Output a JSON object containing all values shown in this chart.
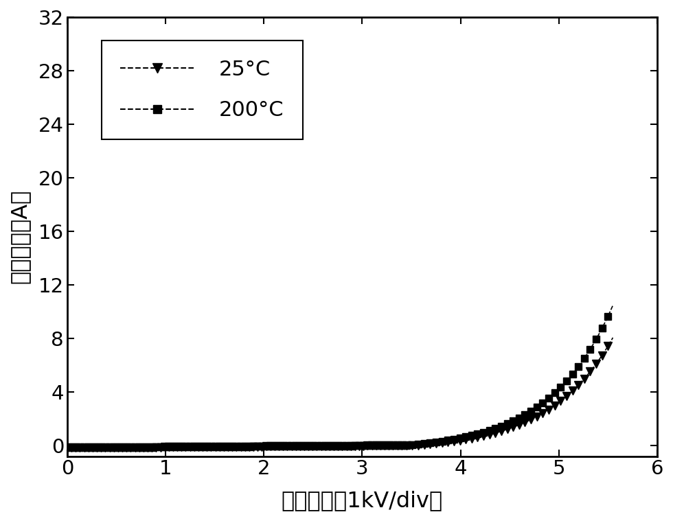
{
  "xlabel": "正向电压（1kV/div）",
  "ylabel": "正向电流（A）",
  "xlim": [
    0,
    6
  ],
  "ylim": [
    -0.8,
    32
  ],
  "xticks": [
    0,
    1,
    2,
    3,
    4,
    5,
    6
  ],
  "yticks": [
    0,
    4,
    8,
    12,
    16,
    20,
    24,
    28,
    32
  ],
  "legend_25": "25°C",
  "legend_200": "200°C",
  "background_color": "#ffffff",
  "line_color": "#000000",
  "v_threshold_25": 3.55,
  "scale_25": 0.38,
  "exp_rate_25": 1.55,
  "v_threshold_200": 3.45,
  "scale_200": 0.42,
  "exp_rate_200": 1.55,
  "n_markers_low": 80,
  "n_markers_high": 35
}
